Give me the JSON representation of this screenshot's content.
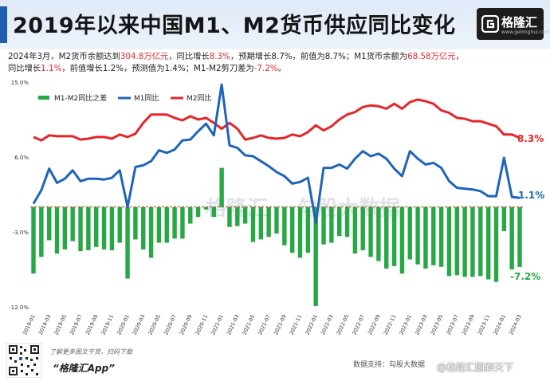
{
  "header": {
    "title": "2019年以来中国M1、M2货币供应同比变化",
    "logo_name": "格隆汇",
    "logo_url": "www.gelonghui.com"
  },
  "summary": {
    "p1": "2024年3月，M2货币余额达到",
    "v1": "304.8万亿元",
    "p2": "，同比增长",
    "v2": "8.3%",
    "p3": "，预期增长8.7%，前值为8.7%；M1货币余额为",
    "v3": "68.58万亿元",
    "p4": "，",
    "p5": "同比增长",
    "v4": "1.1%",
    "p6": "，前值增长1.2%，预测值为1.4%；M1-M2剪刀差为",
    "v5": "-7.2%",
    "p7": "。"
  },
  "chart_data": {
    "type": "line",
    "x": [
      "2019-01",
      "2019-02",
      "2019-03",
      "2019-04",
      "2019-05",
      "2019-06",
      "2019-07",
      "2019-08",
      "2019-09",
      "2019-10",
      "2019-11",
      "2019-12",
      "2020-01",
      "2020-02",
      "2020-03",
      "2020-04",
      "2020-05",
      "2020-06",
      "2020-07",
      "2020-08",
      "2020-09",
      "2020-10",
      "2020-11",
      "2020-12",
      "2021-01",
      "2021-02",
      "2021-03",
      "2021-04",
      "2021-05",
      "2021-06",
      "2021-07",
      "2021-08",
      "2021-09",
      "2021-10",
      "2021-11",
      "2021-12",
      "2022-01",
      "2022-02",
      "2022-03",
      "2022-04",
      "2022-05",
      "2022-06",
      "2022-07",
      "2022-08",
      "2022-09",
      "2022-10",
      "2022-11",
      "2022-12",
      "2023-01",
      "2023-02",
      "2023-03",
      "2023-04",
      "2023-05",
      "2023-06",
      "2023-07",
      "2023-08",
      "2023-09",
      "2023-10",
      "2023-11",
      "2023-12",
      "2024-01",
      "2024-02",
      "2024-03"
    ],
    "tick_labels": [
      "2019-01",
      "2019-03",
      "2019-05",
      "2019-07",
      "2019-09",
      "2019-11",
      "2020-01",
      "2020-03",
      "2020-05",
      "2020-07",
      "2020-09",
      "2020-11",
      "2021-01",
      "2021-03",
      "2021-05",
      "2021-07",
      "2021-09",
      "2021-11",
      "2022-01",
      "2022-03",
      "2022-05",
      "2022-07",
      "2022-09",
      "2022-11",
      "2023-01",
      "2023-03",
      "2023-05",
      "2023-07",
      "2023-09",
      "2023-11",
      "2024-01",
      "2024-03"
    ],
    "series": [
      {
        "name": "M1-M2同比之差",
        "type": "bar",
        "color": "#27a844",
        "values": [
          -8.0,
          -6.0,
          -4.0,
          -5.6,
          -5.1,
          -4.1,
          -5.3,
          -5.2,
          -4.8,
          -5.1,
          -5.2,
          -4.3,
          -8.6,
          -3.9,
          -5.1,
          -6.1,
          -4.3,
          -4.3,
          -3.8,
          -3.8,
          -2.0,
          -1.2,
          -0.3,
          -1.2,
          4.7,
          -2.4,
          -2.3,
          -2.0,
          -4.2,
          -3.9,
          -3.6,
          -3.2,
          -4.6,
          -5.5,
          -6.1,
          -5.5,
          -11.9,
          -4.5,
          -4.3,
          -3.5,
          -3.6,
          -5.6,
          -5.2,
          -6.0,
          -6.5,
          -7.4,
          -7.1,
          -8.0,
          -6.3,
          -6.9,
          -7.4,
          -7.0,
          -7.2,
          -8.3,
          -8.2,
          -8.4,
          -8.4,
          -8.3,
          -8.7,
          -9.0,
          -2.9,
          -7.5,
          -7.2
        ]
      },
      {
        "name": "M1同比",
        "type": "line",
        "color": "#1e64b7",
        "values": [
          0.4,
          2.0,
          4.6,
          2.9,
          3.4,
          4.4,
          3.1,
          3.4,
          3.4,
          3.3,
          3.5,
          4.4,
          0.0,
          4.8,
          5.0,
          5.5,
          6.8,
          6.5,
          6.9,
          8.0,
          8.1,
          9.1,
          10.0,
          8.6,
          14.7,
          7.4,
          7.1,
          6.2,
          6.1,
          5.5,
          4.9,
          4.2,
          3.7,
          2.8,
          3.0,
          3.5,
          -1.9,
          4.7,
          4.7,
          5.1,
          4.6,
          5.8,
          6.7,
          6.1,
          6.4,
          5.8,
          4.6,
          3.7,
          6.7,
          5.8,
          5.1,
          5.3,
          4.7,
          3.1,
          2.3,
          2.2,
          2.1,
          1.9,
          1.3,
          1.3,
          5.9,
          1.2,
          1.1
        ]
      },
      {
        "name": "M2同比",
        "type": "line",
        "color": "#e3262a",
        "values": [
          8.4,
          8.0,
          8.6,
          8.5,
          8.5,
          8.5,
          8.1,
          8.2,
          8.4,
          8.4,
          8.2,
          8.7,
          8.4,
          8.8,
          10.1,
          11.1,
          11.1,
          11.1,
          10.7,
          10.4,
          10.9,
          10.5,
          10.7,
          10.1,
          9.4,
          10.1,
          9.4,
          8.1,
          8.3,
          8.6,
          8.3,
          8.2,
          8.3,
          8.7,
          8.5,
          9.0,
          9.8,
          9.2,
          9.7,
          10.5,
          11.1,
          11.4,
          12.0,
          12.2,
          12.1,
          11.8,
          12.4,
          11.8,
          12.6,
          12.9,
          12.7,
          12.4,
          11.6,
          11.3,
          10.7,
          10.6,
          10.3,
          10.3,
          10.0,
          9.7,
          8.7,
          8.7,
          8.3
        ]
      }
    ],
    "y_ticks": [
      "15.0%",
      "6.0%",
      "-3.0%",
      "-12.0%"
    ],
    "ylim": [
      -12,
      15
    ],
    "legend_position": "top-left",
    "end_labels": {
      "m2": "8.3%",
      "m1": "1.1%",
      "diff": "-7.2%"
    },
    "watermark": [
      "格隆汇",
      "勾股大数据"
    ],
    "grid": false
  },
  "footer": {
    "note": "了解更多图文干货，扫码下载",
    "app": "“格隆汇App”",
    "source": "数据支持：勾股大数据",
    "weibo": "@格隆汇图解天下"
  }
}
